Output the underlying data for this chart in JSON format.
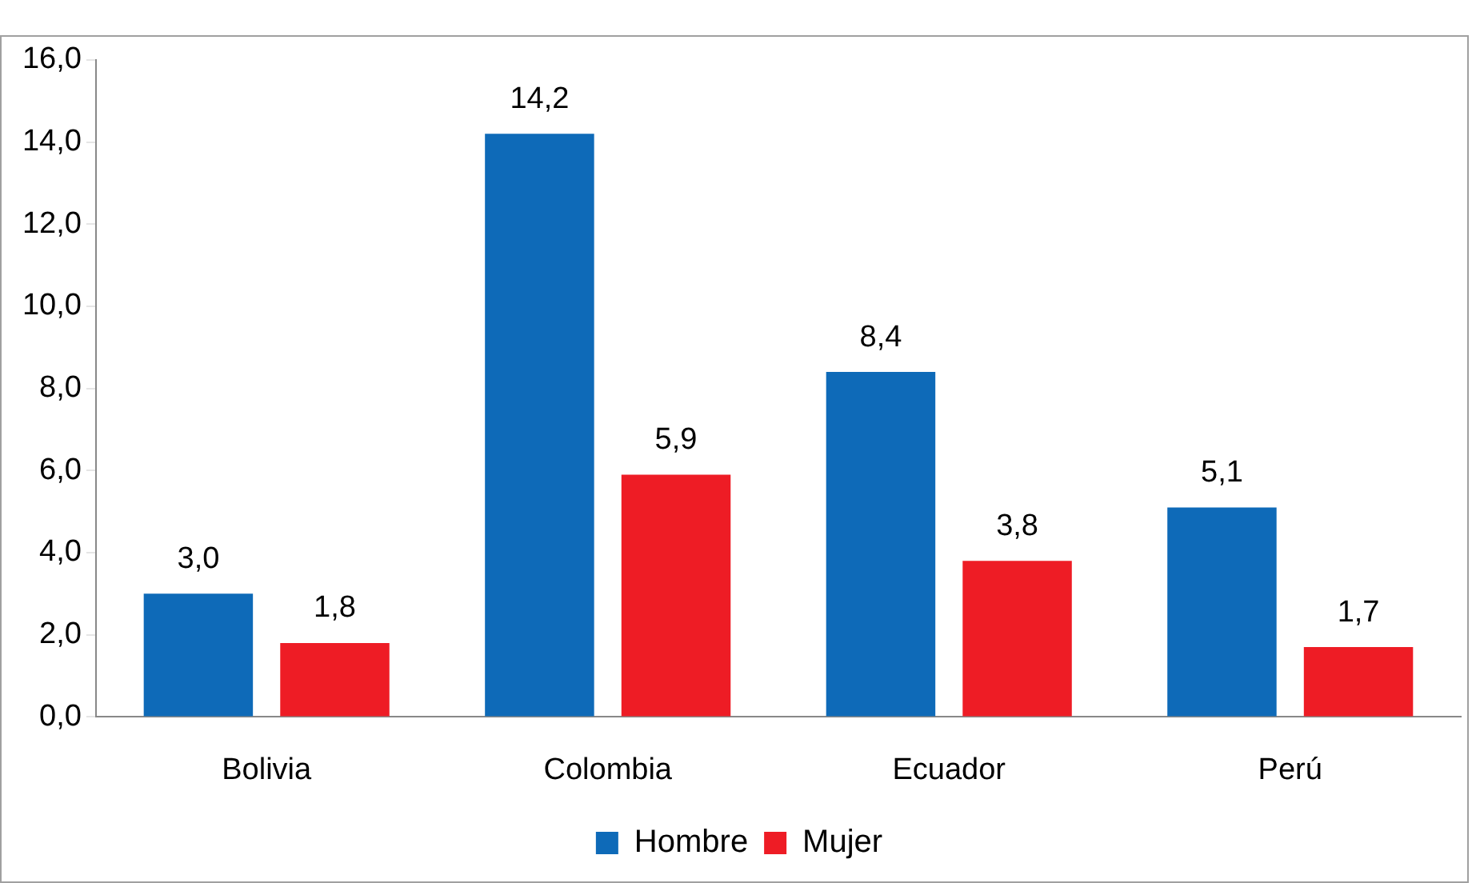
{
  "chart_data": {
    "type": "bar",
    "categories": [
      "Bolivia",
      "Colombia",
      "Ecuador",
      "Perú"
    ],
    "series": [
      {
        "name": "Hombre",
        "color": "#0e6ab8",
        "values": [
          3.0,
          14.2,
          8.4,
          5.1
        ],
        "value_labels": [
          "3,0",
          "14,2",
          "8,4",
          "5,1"
        ]
      },
      {
        "name": "Mujer",
        "color": "#ee1c25",
        "values": [
          1.8,
          5.9,
          3.8,
          1.7
        ],
        "value_labels": [
          "1,8",
          "5,9",
          "3,8",
          "1,7"
        ]
      }
    ],
    "ylim": [
      0,
      16
    ],
    "yticks": [
      {
        "value": 0,
        "label": "0,0"
      },
      {
        "value": 2,
        "label": "2,0"
      },
      {
        "value": 4,
        "label": "4,0"
      },
      {
        "value": 6,
        "label": "6,0"
      },
      {
        "value": 8,
        "label": "8,0"
      },
      {
        "value": 10,
        "label": "10,0"
      },
      {
        "value": 12,
        "label": "12,0"
      },
      {
        "value": 14,
        "label": "14,0"
      },
      {
        "value": 16,
        "label": "16,0"
      }
    ],
    "grid": false,
    "legend": "bottom"
  }
}
